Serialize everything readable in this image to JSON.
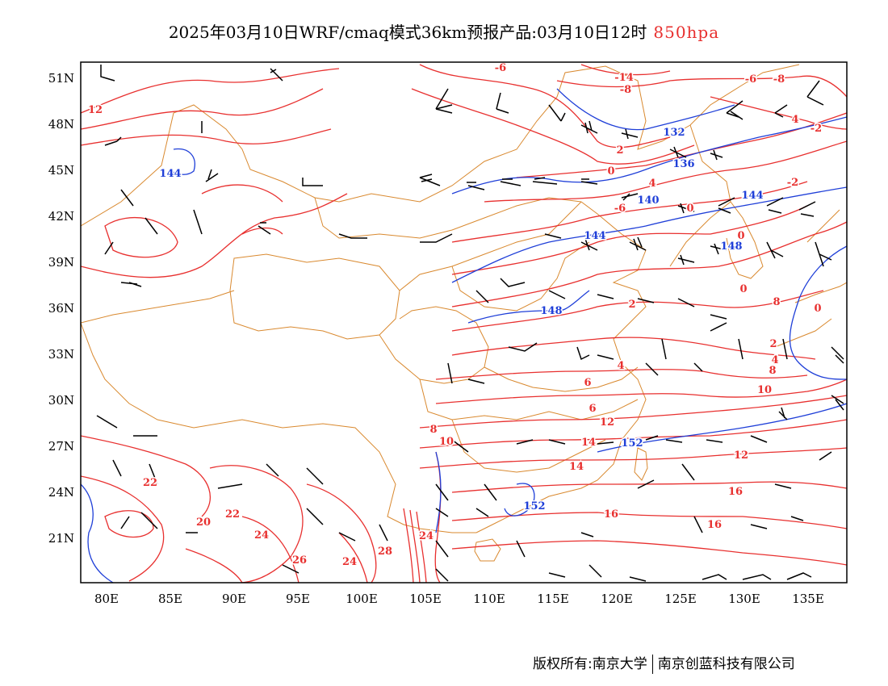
{
  "title": {
    "main": "2025年03月10日WRF/cmaq模式36km预报产品:03月10日12时",
    "level": "850hpa",
    "level_color": "#e8302f"
  },
  "map": {
    "lon_labels": [
      "80E",
      "85E",
      "90E",
      "95E",
      "100E",
      "105E",
      "110E",
      "115E",
      "120E",
      "125E",
      "130E",
      "135E"
    ],
    "lat_labels": [
      "51N",
      "48N",
      "45N",
      "42N",
      "39N",
      "36N",
      "33N",
      "30N",
      "27N",
      "24N",
      "21N"
    ],
    "colors": {
      "temperature_isotherm": "#e8302f",
      "geopotential_height": "#1f3fd8",
      "boundaries": "#d9892f",
      "wind_barb": "#000000"
    },
    "temperature_labels": [
      "-6",
      "-14",
      "-8",
      "-6",
      "-8",
      "4",
      "-2",
      "12",
      "2",
      "0",
      "4",
      "-2",
      "-6",
      "0",
      "2",
      "8",
      "0",
      "0",
      "0",
      "2",
      "4",
      "6",
      "4",
      "6",
      "8",
      "10",
      "8",
      "10",
      "12",
      "12",
      "14",
      "14",
      "16",
      "16",
      "16",
      "24",
      "22",
      "20",
      "22",
      "24",
      "26",
      "24",
      "28"
    ],
    "height_labels": [
      "132",
      "136",
      "144",
      "140",
      "144",
      "148",
      "144",
      "148",
      "152",
      "152"
    ]
  },
  "footer": {
    "left": "版权所有:南京大学",
    "right": "南京创蓝科技有限公司"
  }
}
